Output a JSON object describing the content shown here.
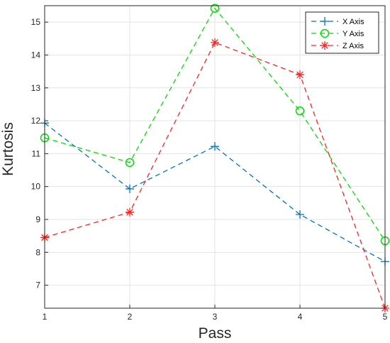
{
  "chart_data": {
    "type": "line",
    "xlabel": "Pass",
    "ylabel": "Kurtosis",
    "x": [
      1,
      2,
      3,
      4,
      5
    ],
    "xlim": [
      1,
      5
    ],
    "ylim": [
      6.3,
      15.5
    ],
    "xticks": [
      "1",
      "2",
      "3",
      "4",
      "5"
    ],
    "yticks": [
      "7",
      "8",
      "9",
      "10",
      "11",
      "12",
      "13",
      "14",
      "15"
    ],
    "grid": true,
    "legend_position": "top-right",
    "series": [
      {
        "name": "X Axis",
        "values": [
          11.93,
          9.93,
          11.22,
          9.15,
          7.72
        ],
        "color": "#0072BD",
        "marker": "plus"
      },
      {
        "name": "Y Axis",
        "values": [
          11.48,
          10.73,
          15.42,
          12.3,
          8.35
        ],
        "color": "#00DD00",
        "marker": "circle"
      },
      {
        "name": "Z Axis",
        "values": [
          8.45,
          9.22,
          14.38,
          13.4,
          6.3
        ],
        "color": "#FF2020",
        "marker": "asterisk"
      }
    ]
  }
}
